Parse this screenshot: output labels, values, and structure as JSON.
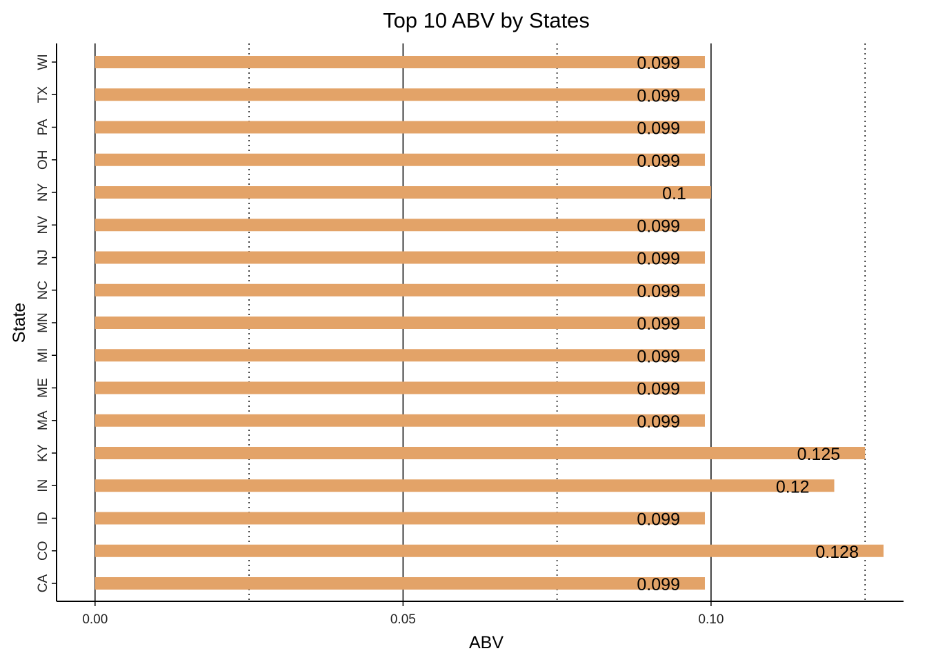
{
  "chart_data": {
    "type": "bar",
    "orientation": "horizontal",
    "title": "Top 10 ABV by States",
    "xlabel": "ABV",
    "ylabel": "State",
    "categories": [
      "CA",
      "CO",
      "ID",
      "IN",
      "KY",
      "MA",
      "ME",
      "MI",
      "MN",
      "NC",
      "NJ",
      "NV",
      "NY",
      "OH",
      "PA",
      "TX",
      "WI"
    ],
    "values": [
      0.099,
      0.128,
      0.099,
      0.12,
      0.125,
      0.099,
      0.099,
      0.099,
      0.099,
      0.099,
      0.099,
      0.099,
      0.1,
      0.099,
      0.099,
      0.099,
      0.099
    ],
    "data_labels": [
      "0.099",
      "0.128",
      "0.099",
      "0.12",
      "0.125",
      "0.099",
      "0.099",
      "0.099",
      "0.099",
      "0.099",
      "0.099",
      "0.099",
      "0.1",
      "0.099",
      "0.099",
      "0.099",
      "0.099"
    ],
    "xticks": [
      0.0,
      0.05,
      0.1
    ],
    "xtick_labels": [
      "0.00",
      "0.05",
      "0.10"
    ],
    "major_gridlines": [
      0.0,
      0.05,
      0.1
    ],
    "minor_gridlines_dotted": [
      0.025,
      0.075,
      0.125
    ],
    "xlim": [
      -0.00625,
      0.13125
    ],
    "bar_color": "#E3A368",
    "grid": true,
    "legend": "none"
  }
}
